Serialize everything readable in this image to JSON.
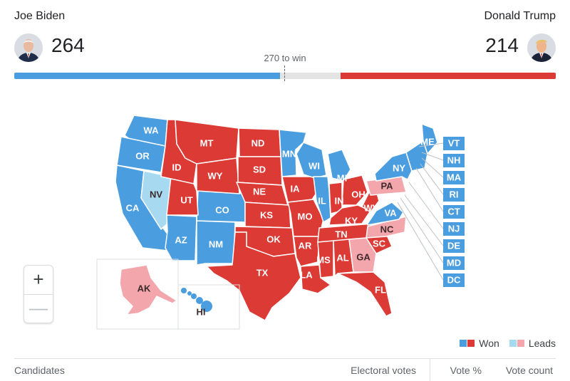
{
  "colors": {
    "dem_won": "#4a9ee0",
    "dem_leads": "#a7d9f1",
    "rep_won": "#dc3a35",
    "rep_leads": "#f3a6ab",
    "neutral": "#e4e4e4"
  },
  "candidates": {
    "left": {
      "name": "Joe Biden",
      "votes": "264",
      "avatar_icon": "person-photo-icon"
    },
    "right": {
      "name": "Donald Trump",
      "votes": "214",
      "avatar_icon": "person-photo-icon"
    }
  },
  "progress": {
    "label": "270 to win",
    "total": 538,
    "left_fraction": 0.4907,
    "right_fraction": 0.3978
  },
  "map": {
    "states": [
      {
        "code": "WA",
        "status": "dem_won"
      },
      {
        "code": "OR",
        "status": "dem_won"
      },
      {
        "code": "CA",
        "status": "dem_won"
      },
      {
        "code": "NV",
        "status": "dem_leads"
      },
      {
        "code": "AZ",
        "status": "dem_won"
      },
      {
        "code": "NM",
        "status": "dem_won"
      },
      {
        "code": "CO",
        "status": "dem_won"
      },
      {
        "code": "UT",
        "status": "rep_won"
      },
      {
        "code": "ID",
        "status": "rep_won"
      },
      {
        "code": "MT",
        "status": "rep_won"
      },
      {
        "code": "WY",
        "status": "rep_won"
      },
      {
        "code": "ND",
        "status": "rep_won"
      },
      {
        "code": "SD",
        "status": "rep_won"
      },
      {
        "code": "NE",
        "status": "rep_won"
      },
      {
        "code": "KS",
        "status": "rep_won"
      },
      {
        "code": "OK",
        "status": "rep_won"
      },
      {
        "code": "TX",
        "status": "rep_won"
      },
      {
        "code": "MN",
        "status": "dem_won"
      },
      {
        "code": "IA",
        "status": "rep_won"
      },
      {
        "code": "MO",
        "status": "rep_won"
      },
      {
        "code": "AR",
        "status": "rep_won"
      },
      {
        "code": "LA",
        "status": "rep_won"
      },
      {
        "code": "WI",
        "status": "dem_won"
      },
      {
        "code": "IL",
        "status": "dem_won"
      },
      {
        "code": "MI",
        "status": "dem_won"
      },
      {
        "code": "IN",
        "status": "rep_won"
      },
      {
        "code": "OH",
        "status": "rep_won"
      },
      {
        "code": "KY",
        "status": "rep_won"
      },
      {
        "code": "TN",
        "status": "rep_won"
      },
      {
        "code": "MS",
        "status": "rep_won"
      },
      {
        "code": "AL",
        "status": "rep_won"
      },
      {
        "code": "GA",
        "status": "rep_leads"
      },
      {
        "code": "FL",
        "status": "rep_won"
      },
      {
        "code": "SC",
        "status": "rep_won"
      },
      {
        "code": "NC",
        "status": "rep_leads"
      },
      {
        "code": "VA",
        "status": "dem_won"
      },
      {
        "code": "WV",
        "status": "rep_won"
      },
      {
        "code": "PA",
        "status": "rep_leads"
      },
      {
        "code": "NY",
        "status": "dem_won"
      },
      {
        "code": "ME",
        "status": "dem_won"
      },
      {
        "code": "AK",
        "status": "rep_leads"
      },
      {
        "code": "HI",
        "status": "dem_won"
      }
    ],
    "small_states": [
      {
        "code": "VT",
        "status": "dem_won"
      },
      {
        "code": "NH",
        "status": "dem_won"
      },
      {
        "code": "MA",
        "status": "dem_won"
      },
      {
        "code": "RI",
        "status": "dem_won"
      },
      {
        "code": "CT",
        "status": "dem_won"
      },
      {
        "code": "NJ",
        "status": "dem_won"
      },
      {
        "code": "DE",
        "status": "dem_won"
      },
      {
        "code": "MD",
        "status": "dem_won"
      },
      {
        "code": "DC",
        "status": "dem_won"
      }
    ]
  },
  "zoom": {
    "in_label": "+",
    "out_label": "—"
  },
  "legend": {
    "won": "Won",
    "leads": "Leads"
  },
  "table": {
    "headers": [
      "Candidates",
      "Electoral votes",
      "Vote %",
      "Vote count"
    ]
  }
}
